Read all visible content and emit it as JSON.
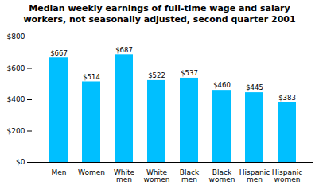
{
  "chart_data": {
    "type": "bar",
    "title": "Median weekly earnings of full-time wage and salary\nworkers, not seasonally adjusted, second quarter 2001",
    "categories": [
      "Men",
      "Women",
      "White\nmen",
      "White\nwomen",
      "Black\nmen",
      "Black\nwomen",
      "Hispanic\nmen",
      "Hispanic\nwomen"
    ],
    "values": [
      667,
      514,
      687,
      522,
      537,
      460,
      445,
      383
    ],
    "value_labels": [
      "$667",
      "$514",
      "$687",
      "$522",
      "$537",
      "$460",
      "$445",
      "$383"
    ],
    "color": "#00BFFF",
    "ylim": [
      0,
      800
    ],
    "yticks": [
      {
        "value": 0,
        "label": "$0"
      },
      {
        "value": 200,
        "label": "$200"
      },
      {
        "value": 400,
        "label": "$400"
      },
      {
        "value": 600,
        "label": "$600"
      },
      {
        "value": 800,
        "label": "$800"
      }
    ],
    "grid": false,
    "data_labels": true
  }
}
